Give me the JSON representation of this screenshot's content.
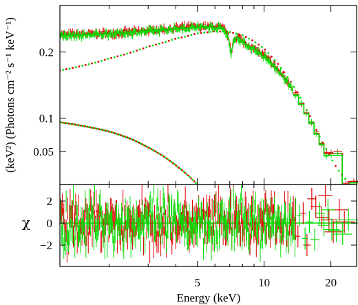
{
  "chart_data": [
    {
      "panel": "spectrum",
      "type": "line",
      "xlabel": "",
      "ylabel": "(keV²) (Photons cm⁻² s⁻¹ keV⁻¹)",
      "xlim": [
        1.2,
        26.5
      ],
      "ylim": [
        0.0,
        0.27
      ],
      "y_ticks": [
        "0.05",
        "0.1",
        "0.2"
      ],
      "y_tick_values": [
        0.05,
        0.1,
        0.2
      ],
      "grid": false,
      "colors": {
        "red": "#dd0000",
        "green": "#00dd00"
      },
      "series": [
        {
          "color": "red",
          "style": "data-with-model",
          "x": [
            1.2,
            2,
            3,
            4,
            5,
            6,
            6.5,
            6.9,
            7.1,
            7.3,
            7.6,
            8,
            9,
            10,
            11,
            12,
            13,
            14,
            15,
            16,
            17,
            18,
            19,
            20,
            21,
            22,
            23,
            24
          ],
          "y": [
            0.226,
            0.228,
            0.232,
            0.236,
            0.238,
            0.238,
            0.236,
            0.225,
            0.195,
            0.22,
            0.223,
            0.215,
            0.205,
            0.194,
            0.181,
            0.166,
            0.151,
            0.134,
            0.116,
            0.099,
            0.081,
            0.064,
            0.047,
            0.047,
            0.047,
            0.047,
            0.0,
            0.0
          ]
        },
        {
          "color": "green",
          "style": "data-with-model",
          "x": [
            1.2,
            2,
            3,
            4,
            5,
            6,
            6.5,
            6.9,
            7.1,
            7.3,
            7.6,
            8,
            9,
            10,
            11,
            12,
            13,
            14,
            15,
            16,
            17,
            18,
            19,
            20,
            21,
            22,
            23,
            24
          ],
          "y": [
            0.224,
            0.227,
            0.231,
            0.235,
            0.237,
            0.237,
            0.235,
            0.223,
            0.193,
            0.219,
            0.222,
            0.214,
            0.204,
            0.192,
            0.179,
            0.165,
            0.15,
            0.133,
            0.115,
            0.098,
            0.08,
            0.063,
            0.044,
            0.044,
            0.044,
            0.044,
            0.0,
            0.0
          ]
        },
        {
          "color": "mixed",
          "style": "dotted-model-component",
          "x": [
            1.2,
            2,
            3,
            4,
            5,
            6,
            7,
            8,
            9,
            10,
            11,
            12,
            13,
            14,
            15,
            16,
            17,
            18,
            19,
            20,
            21,
            22,
            23,
            24
          ],
          "y": [
            0.172,
            0.19,
            0.208,
            0.22,
            0.228,
            0.231,
            0.23,
            0.225,
            0.216,
            0.205,
            0.19,
            0.175,
            0.158,
            0.141,
            0.123,
            0.105,
            0.086,
            0.069,
            0.054,
            0.04,
            0.028,
            0.018,
            0.01,
            0.004
          ]
        },
        {
          "color": "mixed",
          "style": "dotted-model-component",
          "x": [
            1.2,
            2,
            2.5,
            3,
            3.5,
            4,
            4.5,
            5
          ],
          "y": [
            0.094,
            0.08,
            0.069,
            0.056,
            0.043,
            0.029,
            0.015,
            0.0
          ]
        }
      ]
    },
    {
      "panel": "residuals",
      "type": "scatter",
      "xlabel": "Energy (keV)",
      "ylabel": "χ",
      "xlim": [
        1.2,
        26.5
      ],
      "ylim": [
        -4.0,
        3.5
      ],
      "x_ticks": [
        "5",
        "10",
        "20"
      ],
      "x_tick_values": [
        5,
        10,
        20
      ],
      "y_ticks": [
        "2",
        "0",
        "−2"
      ],
      "y_tick_values": [
        2,
        0,
        -2
      ],
      "grid": false,
      "series": [
        {
          "color": "red",
          "x": [
            14.2,
            15.0,
            15.6,
            16.4,
            17.1,
            18.2,
            18.9,
            19.6,
            20.5,
            21.8,
            23.0
          ],
          "y": [
            -1.2,
            0.9,
            -2.0,
            2.2,
            1.5,
            0.5,
            2.5,
            0.3,
            -0.8,
            1.2,
            0.1
          ]
        },
        {
          "color": "green",
          "x": [
            14.4,
            15.3,
            16.0,
            16.9,
            17.8,
            18.6,
            19.4,
            20.2,
            21.2,
            22.6,
            24.0
          ],
          "y": [
            0.7,
            -1.4,
            0.1,
            -1.5,
            0.9,
            -0.2,
            1.2,
            -0.6,
            -0.7,
            -1.0,
            0.3
          ]
        }
      ]
    }
  ]
}
